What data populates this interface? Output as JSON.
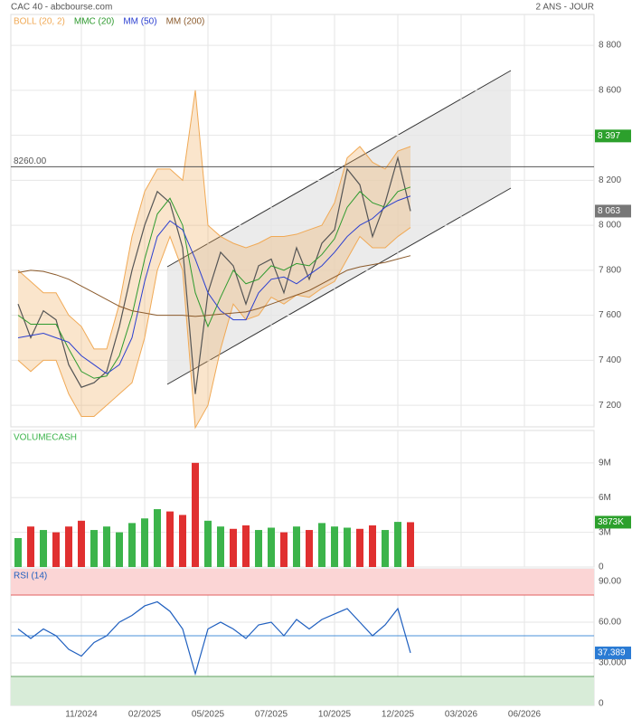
{
  "header": {
    "title": "CAC 40 - abcbourse.com",
    "period": "2 ANS - JOUR"
  },
  "chart_data": [
    {
      "type": "line",
      "values": [
        7650,
        7500,
        7620,
        7580,
        7380,
        7280,
        7300,
        7350,
        7550,
        7800,
        8000,
        8150,
        8100,
        7900,
        7250,
        7700,
        7880,
        7820,
        7650,
        7820,
        7850,
        7700,
        7900,
        7760,
        7920,
        7980,
        8250,
        8180,
        7950,
        8100,
        8300,
        8063,
        null,
        null,
        null,
        null,
        null,
        null,
        null,
        null,
        null,
        null,
        null,
        null,
        null,
        null
      ],
      "color": "#555555",
      "band": {
        "name": "BOLL (20, 2)",
        "color": "#f0a955",
        "upper": [
          7800,
          7750,
          7700,
          7700,
          7600,
          7550,
          7450,
          7450,
          7650,
          7950,
          8150,
          8250,
          8250,
          8200,
          8600,
          8000,
          7950,
          7920,
          7900,
          7920,
          7950,
          7950,
          7960,
          7980,
          8000,
          8100,
          8300,
          8350,
          8280,
          8250,
          8330,
          8350,
          null,
          null,
          null,
          null,
          null,
          null,
          null,
          null,
          null,
          null,
          null,
          null,
          null,
          null
        ],
        "lower": [
          7400,
          7350,
          7400,
          7400,
          7250,
          7150,
          7150,
          7200,
          7250,
          7300,
          7500,
          7800,
          7950,
          7800,
          7100,
          7200,
          7450,
          7650,
          7580,
          7600,
          7680,
          7650,
          7690,
          7680,
          7720,
          7750,
          7850,
          7950,
          7900,
          7900,
          7950,
          7990,
          null,
          null,
          null,
          null,
          null,
          null,
          null,
          null,
          null,
          null,
          null,
          null,
          null,
          null
        ]
      },
      "series": [
        {
          "name": "MMC (20)",
          "color": "#2e9a2e",
          "values": [
            7600,
            7560,
            7560,
            7560,
            7450,
            7350,
            7320,
            7330,
            7420,
            7600,
            7850,
            8050,
            8120,
            8000,
            7700,
            7550,
            7680,
            7800,
            7740,
            7760,
            7820,
            7800,
            7830,
            7820,
            7870,
            7940,
            8080,
            8150,
            8100,
            8080,
            8150,
            8170,
            null,
            null,
            null,
            null,
            null,
            null,
            null,
            null,
            null,
            null,
            null,
            null,
            null,
            null
          ]
        },
        {
          "name": "MM (50)",
          "color": "#2b3fd0",
          "values": [
            7500,
            7510,
            7520,
            7500,
            7480,
            7420,
            7380,
            7340,
            7380,
            7500,
            7750,
            7950,
            8020,
            7980,
            7850,
            7700,
            7620,
            7580,
            7580,
            7700,
            7760,
            7770,
            7740,
            7780,
            7820,
            7880,
            7950,
            8000,
            8030,
            8080,
            8110,
            8130,
            null,
            null,
            null,
            null,
            null,
            null,
            null,
            null,
            null,
            null,
            null,
            null,
            null,
            null
          ]
        },
        {
          "name": "MM (200)",
          "color": "#8b5a2b",
          "values": [
            7790,
            7800,
            7795,
            7780,
            7760,
            7730,
            7700,
            7670,
            7640,
            7620,
            7610,
            7600,
            7600,
            7600,
            7595,
            7600,
            7605,
            7610,
            7615,
            7630,
            7650,
            7670,
            7690,
            7710,
            7740,
            7770,
            7800,
            7815,
            7825,
            7835,
            7850,
            7865,
            null,
            null,
            null,
            null,
            null,
            null,
            null,
            null,
            null,
            null,
            null,
            null,
            null,
            null
          ]
        }
      ],
      "ylim": [
        7104,
        8937
      ],
      "yticks": [
        {
          "value": 7200,
          "label": "7 200"
        },
        {
          "value": 7400,
          "label": "7 400"
        },
        {
          "value": 7600,
          "label": "7 600"
        },
        {
          "value": 7800,
          "label": "7 800"
        },
        {
          "value": 8000,
          "label": "8 000"
        },
        {
          "value": 8200,
          "label": "8 200"
        },
        {
          "value": 8400,
          "label": "8 400"
        },
        {
          "value": 8600,
          "label": "8 600"
        },
        {
          "value": 8800,
          "label": "8 800"
        }
      ],
      "hline": {
        "value": 8260,
        "label": "8260.00"
      },
      "last_labels": [
        {
          "value": 8397,
          "label": "8 397",
          "color": "#2ca02c"
        },
        {
          "value": 8063,
          "label": "8 063",
          "color": "#777777"
        }
      ],
      "grid": true
    },
    {
      "type": "bar",
      "title": "VOLUMECASH",
      "values": [
        2500000,
        3500000,
        3200000,
        3000000,
        3500000,
        4000000,
        3200000,
        3500000,
        3000000,
        3800000,
        4200000,
        5000000,
        4800000,
        4500000,
        9000000,
        4000000,
        3500000,
        3300000,
        3600000,
        3200000,
        3400000,
        3000000,
        3500000,
        3200000,
        3800000,
        3500000,
        3400000,
        3300000,
        3600000,
        3200000,
        3900000,
        3873000,
        null,
        null,
        null,
        null,
        null,
        null,
        null,
        null,
        null,
        null,
        null,
        null,
        null,
        null
      ],
      "up_color": "#3cb44b",
      "down_color": "#e03030",
      "ylim": [
        0,
        11800000
      ],
      "yticks": [
        0,
        {
          "value": 3000000,
          "label": "3M"
        },
        {
          "value": 6000000,
          "label": "6M"
        },
        {
          "value": 9000000,
          "label": "9M"
        }
      ],
      "last_label": {
        "value": 3873000,
        "label": "3873K",
        "color": "#2ca02c"
      },
      "grid": true
    },
    {
      "type": "line",
      "title": "RSI (14)",
      "categories": [
        null,
        null,
        null,
        null,
        null,
        "11/2024",
        null,
        null,
        null,
        null,
        "02/2025",
        null,
        null,
        null,
        null,
        "05/2025",
        null,
        null,
        null,
        null,
        "07/2025",
        null,
        null,
        null,
        null,
        "10/2025",
        null,
        null,
        null,
        null,
        "12/2025",
        null,
        null,
        null,
        null,
        "03/2026",
        null,
        null,
        null,
        null,
        "06/2026",
        null,
        null,
        null,
        null,
        null
      ],
      "values": [
        55,
        48,
        55,
        50,
        40,
        35,
        45,
        50,
        60,
        65,
        72,
        75,
        68,
        55,
        22,
        55,
        60,
        55,
        48,
        58,
        60,
        50,
        62,
        55,
        62,
        66,
        70,
        60,
        50,
        58,
        70,
        37.389,
        null,
        null,
        null,
        null,
        null,
        null,
        null,
        null,
        null,
        null,
        null,
        null,
        null,
        null
      ],
      "color": "#1f5fbf",
      "ylim": [
        -1.3,
        99.3
      ],
      "yticks": [
        0,
        {
          "value": 30,
          "label": "30.000"
        },
        {
          "value": 60,
          "label": "60.00"
        },
        {
          "value": 90,
          "label": "90.00"
        }
      ],
      "overbought": 80,
      "oversold": 20,
      "midline": 50,
      "last_label": {
        "value": 37.389,
        "label": "37.389",
        "color": "#2a7bd4"
      },
      "grid": true
    }
  ]
}
